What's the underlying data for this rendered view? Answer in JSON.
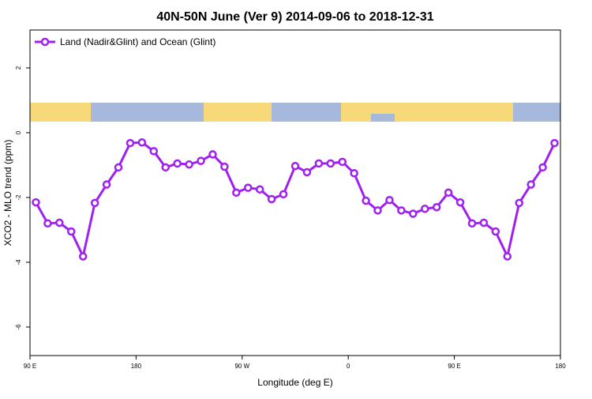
{
  "chart_data": {
    "type": "line",
    "title": "40N-50N June (Ver 9)   2014-09-06 to 2018-12-31",
    "x_label": "Longitude (deg E)",
    "y_label": "XCO2 - MLO trend (ppm)",
    "x": [
      95,
      105,
      115,
      125,
      135,
      145,
      155,
      165,
      175,
      185,
      195,
      205,
      215,
      225,
      235,
      245,
      255,
      265,
      275,
      285,
      295,
      305,
      315,
      325,
      335,
      345,
      355,
      365,
      375,
      385,
      395,
      405,
      415,
      425,
      435,
      445,
      455,
      465,
      475,
      485,
      495,
      505,
      515,
      525,
      535
    ],
    "series": [
      {
        "name": "Land (Nadir&Glint) and Ocean (Glint)",
        "color": "#a020f0",
        "values": [
          -2.15,
          -2.8,
          -2.78,
          -3.05,
          -3.82,
          -2.17,
          -1.6,
          -1.07,
          -0.32,
          -0.3,
          -0.57,
          -1.07,
          -0.95,
          -0.98,
          -0.87,
          -0.67,
          -1.05,
          -1.85,
          -1.7,
          -1.75,
          -2.05,
          -1.9,
          -1.03,
          -1.22,
          -0.95,
          -0.95,
          -0.9,
          -1.25,
          -2.1,
          -2.4,
          -2.08,
          -2.4,
          -2.5,
          -2.35,
          -2.3,
          -1.85,
          -2.15,
          -2.8,
          -2.78,
          -3.05,
          -3.82,
          -2.17,
          -1.6,
          -1.07,
          -0.32
        ]
      }
    ],
    "xlim": [
      90,
      540
    ],
    "xticks": [
      {
        "value": 90,
        "label": "90 E"
      },
      {
        "value": 180,
        "label": "180"
      },
      {
        "value": 270,
        "label": "90 W"
      },
      {
        "value": 360,
        "label": "0"
      },
      {
        "value": 450,
        "label": "90 E"
      },
      {
        "value": 540,
        "label": "180"
      }
    ],
    "ylim": [
      -6.88,
      3.17
    ],
    "yticks": [
      -6,
      -4,
      -2,
      0,
      2
    ],
    "legend": "top-left"
  }
}
